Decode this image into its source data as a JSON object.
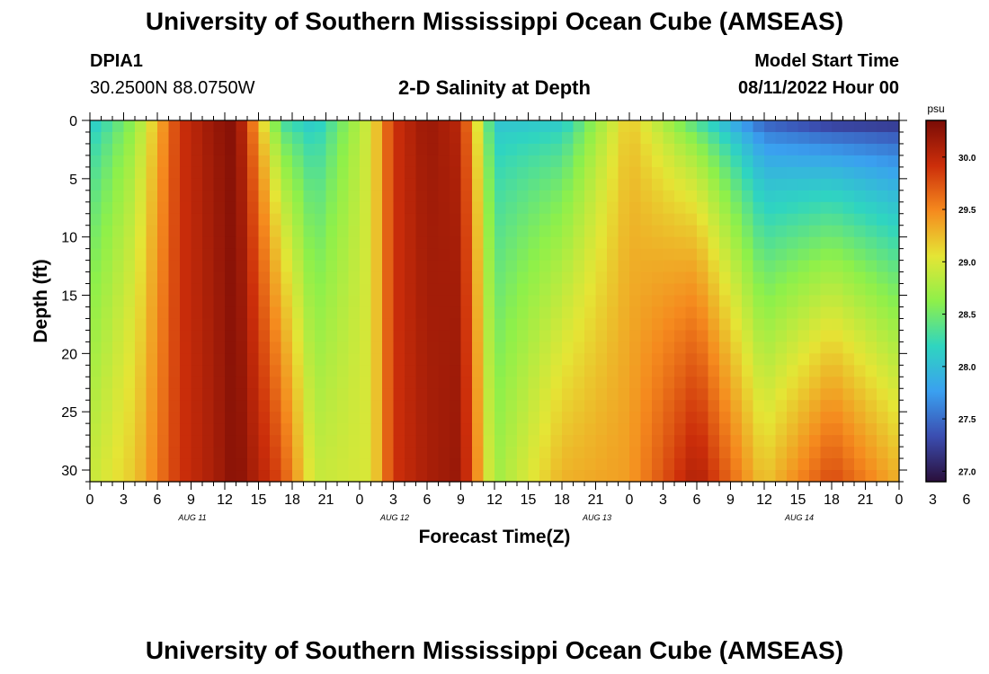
{
  "header": {
    "title": "University of Southern Mississippi Ocean Cube (AMSEAS)",
    "station_id": "DPIA1",
    "coordinates": "30.2500N  88.0750W",
    "subtitle": "2-D Salinity at Depth",
    "model_start_label": "Model Start Time",
    "model_start_value": "08/11/2022 Hour 00"
  },
  "footer": {
    "title_repeat": "University of Southern Mississippi Ocean Cube (AMSEAS)"
  },
  "colors": {
    "colormap": [
      "#2a0f3a",
      "#3b4db0",
      "#3aa0f0",
      "#2fd5c0",
      "#8ef04a",
      "#e5e535",
      "#f58a1e",
      "#cc2e0a",
      "#7a0c06"
    ]
  },
  "chart_data": {
    "type": "heatmap",
    "title": "2-D Salinity at Depth",
    "xlabel": "Forecast Time(Z)",
    "ylabel": "Depth (ft)",
    "x_range_hours": [
      0,
      72
    ],
    "y_range_ft": [
      0,
      31
    ],
    "x_tick_labels": [
      "0",
      "3",
      "6",
      "9",
      "12",
      "15",
      "18",
      "21",
      "0",
      "3",
      "6",
      "9",
      "12",
      "15",
      "18",
      "21",
      "0",
      "3",
      "6",
      "9",
      "12",
      "15",
      "18",
      "21",
      "0",
      "3",
      "6",
      "9",
      "12",
      "15",
      "18",
      "21",
      "0"
    ],
    "y_ticks": [
      0,
      5,
      10,
      15,
      20,
      25,
      30
    ],
    "date_labels": [
      {
        "label": "AUG 11",
        "hour": 8
      },
      {
        "label": "AUG 12",
        "hour": 26
      },
      {
        "label": "AUG 13",
        "hour": 44
      },
      {
        "label": "AUG 14",
        "hour": 62
      }
    ],
    "colorbar": {
      "unit": "psu",
      "min": 26.9,
      "max": 30.35,
      "ticks": [
        {
          "value": 30.0,
          "label": "30.0"
        },
        {
          "value": 29.5,
          "label": "29.5"
        },
        {
          "value": 29.0,
          "label": "29.0"
        },
        {
          "value": 28.5,
          "label": "28.5"
        },
        {
          "value": 28.0,
          "label": "28.0"
        },
        {
          "value": 27.5,
          "label": "27.5"
        },
        {
          "value": 27.0,
          "label": "27.0"
        }
      ]
    },
    "salinity_profile_description": [
      {
        "hour": 0,
        "surface": 28.0,
        "bottom": 28.9
      },
      {
        "hour": 4,
        "surface": 28.6,
        "bottom": 29.2
      },
      {
        "hour": 8,
        "surface": 29.9,
        "bottom": 29.9
      },
      {
        "hour": 11,
        "surface": 30.2,
        "bottom": 30.1
      },
      {
        "hour": 13,
        "surface": 30.3,
        "bottom": 30.3
      },
      {
        "hour": 17,
        "surface": 28.2,
        "bottom": 29.8
      },
      {
        "hour": 20,
        "surface": 28.0,
        "bottom": 28.9
      },
      {
        "hour": 25,
        "surface": 29.0,
        "bottom": 29.0
      },
      {
        "hour": 27,
        "surface": 29.9,
        "bottom": 29.9
      },
      {
        "hour": 30,
        "surface": 30.2,
        "bottom": 30.1
      },
      {
        "hour": 33,
        "surface": 30.0,
        "bottom": 30.2
      },
      {
        "hour": 36,
        "surface": 28.0,
        "bottom": 28.7
      },
      {
        "hour": 42,
        "surface": 28.0,
        "bottom": 29.3
      },
      {
        "hour": 48,
        "surface": 29.2,
        "bottom": 29.4
      },
      {
        "hour": 54,
        "surface": 28.2,
        "bottom": 30.1
      },
      {
        "hour": 60,
        "surface": 27.3,
        "bottom": 29.2
      },
      {
        "hour": 66,
        "surface": 27.0,
        "bottom": 29.8
      },
      {
        "hour": 72,
        "surface": 27.0,
        "bottom": 29.3
      }
    ]
  }
}
